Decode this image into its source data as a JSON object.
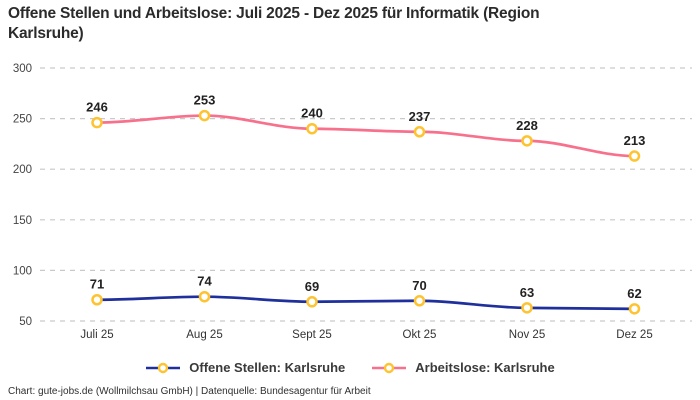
{
  "header": {
    "title": "Offene Stellen und Arbeitslose: Juli 2025 - Dez 2025 für Informatik (Region Karlsruhe)"
  },
  "chart_data": {
    "type": "line",
    "title": "Offene Stellen und Arbeitslose: Juli 2025 - Dez 2025 für Informatik (Region Karlsruhe)",
    "categories": [
      "Juli 25",
      "Aug 25",
      "Sept 25",
      "Okt 25",
      "Nov 25",
      "Dez 25"
    ],
    "series": [
      {
        "name": "Offene Stellen: Karlsruhe",
        "values": [
          71,
          74,
          69,
          70,
          63,
          62
        ],
        "color": "#1f309c"
      },
      {
        "name": "Arbeitslose: Karlsruhe",
        "values": [
          246,
          253,
          240,
          237,
          228,
          213
        ],
        "color": "#f8718c"
      }
    ],
    "marker": {
      "fill": "#ffffff",
      "ring": "#fdc330"
    },
    "ylim": [
      50,
      300
    ],
    "yticks": [
      50,
      100,
      150,
      200,
      250,
      300
    ],
    "grid": "horizontal-dashed",
    "grid_color": "#c9c9c9",
    "tick_label_color": "#444444",
    "data_label_color": "#222222",
    "legend_position": "bottom",
    "data_labels_visible": true
  },
  "footer": {
    "credit": "Chart: gute-jobs.de (Wollmilchsau GmbH) | Datenquelle: Bundesagentur für Arbeit"
  }
}
